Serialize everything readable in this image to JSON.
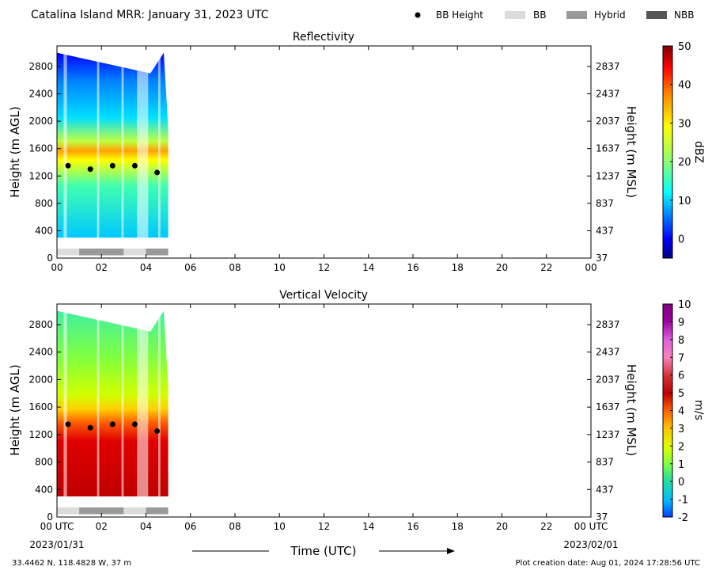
{
  "header": {
    "title": "Catalina Island MRR:  January 31, 2023 UTC",
    "legend": [
      {
        "label": "BB Height",
        "kind": "dot",
        "color": "#000000"
      },
      {
        "label": "BB",
        "kind": "box",
        "color": "#dcdcdc"
      },
      {
        "label": "Hybrid",
        "kind": "box",
        "color": "#9a9a9a"
      },
      {
        "label": "NBB",
        "kind": "box",
        "color": "#555555"
      }
    ]
  },
  "chart_data": [
    {
      "type": "heatmap",
      "title": "Reflectivity",
      "ylabel": "Height (m AGL)",
      "ylabel_right": "Height (m MSL)",
      "x_ticks": [
        "00",
        "02",
        "04",
        "06",
        "08",
        "10",
        "12",
        "14",
        "16",
        "18",
        "20",
        "22",
        "00"
      ],
      "xlim_hours": [
        0,
        24
      ],
      "y_ticks": [
        0,
        400,
        800,
        1200,
        1600,
        2000,
        2400,
        2800
      ],
      "y_ticks_right": [
        "37",
        "437",
        "837",
        "1237",
        "1637",
        "2037",
        "2437",
        "2837"
      ],
      "ylim": [
        0,
        3100
      ],
      "colorbar": {
        "label": "dBZ",
        "ticks": [
          0,
          10,
          20,
          30,
          40,
          50
        ],
        "range": [
          -5,
          50
        ],
        "colors": [
          "#00007f",
          "#0000ff",
          "#007fff",
          "#00ffff",
          "#7fff7f",
          "#ffff00",
          "#ff7f00",
          "#ff0000",
          "#7f0000"
        ]
      },
      "data_hours": [
        0,
        5
      ],
      "echo_top": [
        {
          "t": 0.0,
          "h": 3000
        },
        {
          "t": 4.2,
          "h": 2700
        },
        {
          "t": 4.8,
          "h": 3000
        },
        {
          "t": 5.0,
          "h": 1900
        }
      ],
      "bb_height": [
        {
          "t": 0.5,
          "h": 1350
        },
        {
          "t": 1.5,
          "h": 1300
        },
        {
          "t": 2.5,
          "h": 1350
        },
        {
          "t": 3.5,
          "h": 1350
        },
        {
          "t": 4.5,
          "h": 1250
        }
      ],
      "bb_type": [
        {
          "start": 0,
          "end": 1,
          "type": "BB"
        },
        {
          "start": 1,
          "end": 3,
          "type": "Hybrid"
        },
        {
          "start": 3,
          "end": 4,
          "type": "BB"
        },
        {
          "start": 4,
          "end": 5,
          "type": "Hybrid"
        }
      ]
    },
    {
      "type": "heatmap",
      "title": "Vertical Velocity",
      "ylabel": "Height (m AGL)",
      "ylabel_right": "Height (m MSL)",
      "x_ticks": [
        "00 UTC",
        "02",
        "04",
        "06",
        "08",
        "10",
        "12",
        "14",
        "16",
        "18",
        "20",
        "22",
        "00 UTC"
      ],
      "xlim_hours": [
        0,
        24
      ],
      "y_ticks": [
        0,
        400,
        800,
        1200,
        1600,
        2000,
        2400,
        2800
      ],
      "y_ticks_right": [
        "37",
        "437",
        "837",
        "1237",
        "1637",
        "2037",
        "2437",
        "2837"
      ],
      "ylim": [
        0,
        3100
      ],
      "colorbar": {
        "label": "m/s",
        "ticks": [
          -2,
          -1,
          0,
          1,
          2,
          3,
          4,
          5,
          6,
          7,
          8,
          9,
          10
        ],
        "range": [
          -2,
          10
        ],
        "colors": [
          "#0040ff",
          "#00bfff",
          "#20e0a0",
          "#80ff40",
          "#e0ff00",
          "#ffc000",
          "#ff6000",
          "#c00000",
          "#d03030",
          "#ff80c0",
          "#e060e0",
          "#a000a0",
          "#800080"
        ]
      },
      "data_hours": [
        0,
        5
      ],
      "echo_top": [
        {
          "t": 0.0,
          "h": 3000
        },
        {
          "t": 4.2,
          "h": 2700
        },
        {
          "t": 4.8,
          "h": 3000
        },
        {
          "t": 5.0,
          "h": 1900
        }
      ],
      "bb_height": [
        {
          "t": 0.5,
          "h": 1350
        },
        {
          "t": 1.5,
          "h": 1300
        },
        {
          "t": 2.5,
          "h": 1350
        },
        {
          "t": 3.5,
          "h": 1350
        },
        {
          "t": 4.5,
          "h": 1250
        }
      ],
      "bb_type": [
        {
          "start": 0,
          "end": 1,
          "type": "BB"
        },
        {
          "start": 1,
          "end": 3,
          "type": "Hybrid"
        },
        {
          "start": 3,
          "end": 4,
          "type": "BB"
        },
        {
          "start": 4,
          "end": 5,
          "type": "Hybrid"
        }
      ]
    }
  ],
  "footer": {
    "date_start": "2023/01/31",
    "date_end": "2023/02/01",
    "xlabel": "Time (UTC)",
    "location": "33.4462 N, 118.4828 W, 37 m",
    "creation": "Plot creation date: Aug 01, 2024 17:28:56 UTC"
  }
}
